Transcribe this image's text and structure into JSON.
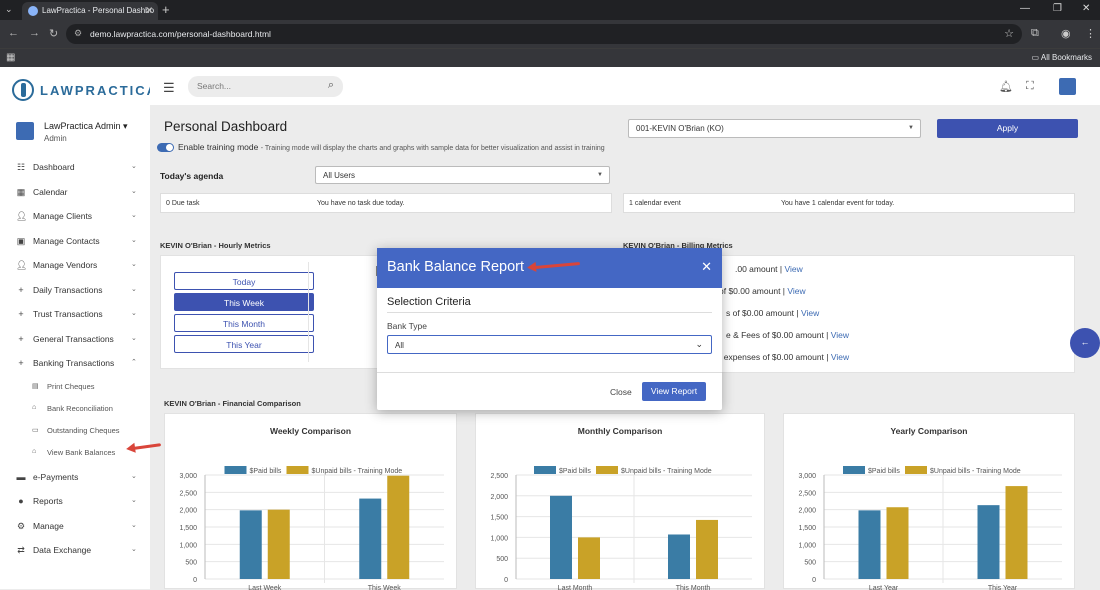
{
  "browser": {
    "tab_title": "LawPractica - Personal Dashbo",
    "url": "demo.lawpractica.com/personal-dashboard.html",
    "bookmarks_label": "All Bookmarks"
  },
  "brand": {
    "name": "LAWPRACTICA",
    "accent": "#3d52b0"
  },
  "profile": {
    "name": "LawPractica Admin",
    "role": "Admin"
  },
  "sidebar": {
    "items": [
      {
        "icon": "dashboard-icon",
        "label": "Dashboard"
      },
      {
        "icon": "calendar-icon",
        "label": "Calendar"
      },
      {
        "icon": "clients-icon",
        "label": "Manage Clients"
      },
      {
        "icon": "contacts-icon",
        "label": "Manage Contacts"
      },
      {
        "icon": "vendors-icon",
        "label": "Manage Vendors"
      },
      {
        "icon": "plus-icon",
        "label": "Daily Transactions"
      },
      {
        "icon": "plus-icon",
        "label": "Trust Transactions"
      },
      {
        "icon": "plus-icon",
        "label": "General Transactions"
      },
      {
        "icon": "plus-icon",
        "label": "Banking Transactions"
      }
    ],
    "sub_items": [
      {
        "icon": "print-icon",
        "label": "Print Cheques"
      },
      {
        "icon": "bank-icon",
        "label": "Bank Reconciliation"
      },
      {
        "icon": "cheque-icon",
        "label": "Outstanding Cheques"
      },
      {
        "icon": "bank-icon",
        "label": "View Bank Balances"
      }
    ],
    "bottom_items": [
      {
        "icon": "payments-icon",
        "label": "e-Payments"
      },
      {
        "icon": "reports-icon",
        "label": "Reports"
      },
      {
        "icon": "manage-icon",
        "label": "Manage"
      },
      {
        "icon": "exchange-icon",
        "label": "Data Exchange"
      }
    ]
  },
  "topbar": {
    "search_placeholder": "Search..."
  },
  "page": {
    "title": "Personal Dashboard",
    "training_label": "Enable training mode",
    "training_desc": "- Training mode will display the charts and graphs with sample data for better visualization and assist in training",
    "user_select": "001-KEVIN O'Brian (KO)",
    "apply": "Apply",
    "agenda_label": "Today's agenda",
    "agenda_filter": "All Users",
    "due_task": "0 Due task",
    "due_msg": "You have no task due today.",
    "cal_event": "1 calendar event",
    "cal_msg": "You have 1 calendar event for today.",
    "hourly_label": "KEVIN O'Brian - Hourly Metrics",
    "billing_label": "KEVIN O'Brian - Billing Metrics",
    "periods": [
      "Today",
      "This Week",
      "This Month",
      "This Year"
    ],
    "billing_rows": [
      ".00 amount",
      "of $0.00 amount",
      "s of $0.00 amount",
      "e & Fees of $0.00 amount",
      "t expenses of $0.00 amount"
    ],
    "view": "View",
    "financial_label": "KEVIN O'Brian - Financial Comparison"
  },
  "modal": {
    "title": "Bank Balance Report",
    "section": "Selection Criteria",
    "bank_type_label": "Bank Type",
    "bank_type_value": "All",
    "close": "Close",
    "view_report": "View Report"
  },
  "chart_data": [
    {
      "type": "bar",
      "title": "Weekly Comparison",
      "categories": [
        "Last Week",
        "This Week"
      ],
      "series": [
        {
          "name": "$Paid bills",
          "values": [
            1980,
            2320
          ],
          "color": "#3a7ca5"
        },
        {
          "name": "$Unpaid bills - Training Mode",
          "values": [
            2000,
            2980
          ],
          "color": "#c9a227"
        }
      ],
      "ylim": [
        0,
        3000
      ],
      "yticks": [
        "3,000",
        "2,500",
        "2,000",
        "1,500",
        "1,000",
        "500",
        "0"
      ]
    },
    {
      "type": "bar",
      "title": "Monthly Comparison",
      "categories": [
        "Last Month",
        "This Month"
      ],
      "series": [
        {
          "name": "$Paid bills",
          "values": [
            2000,
            1070
          ],
          "color": "#3a7ca5"
        },
        {
          "name": "$Unpaid bills - Training Mode",
          "values": [
            1000,
            1420
          ],
          "color": "#c9a227"
        }
      ],
      "ylim": [
        0,
        2500
      ],
      "yticks": [
        "2,500",
        "2,000",
        "1,500",
        "1,000",
        "500",
        "0"
      ]
    },
    {
      "type": "bar",
      "title": "Yearly Comparison",
      "categories": [
        "Last Year",
        "This Year"
      ],
      "series": [
        {
          "name": "$Paid bills",
          "values": [
            1980,
            2130
          ],
          "color": "#3a7ca5"
        },
        {
          "name": "$Unpaid bills - Training Mode",
          "values": [
            2070,
            2680
          ],
          "color": "#c9a227"
        }
      ],
      "ylim": [
        0,
        3000
      ],
      "yticks": [
        "3,000",
        "2,500",
        "2,000",
        "1,500",
        "1,000",
        "500",
        "0"
      ]
    }
  ]
}
